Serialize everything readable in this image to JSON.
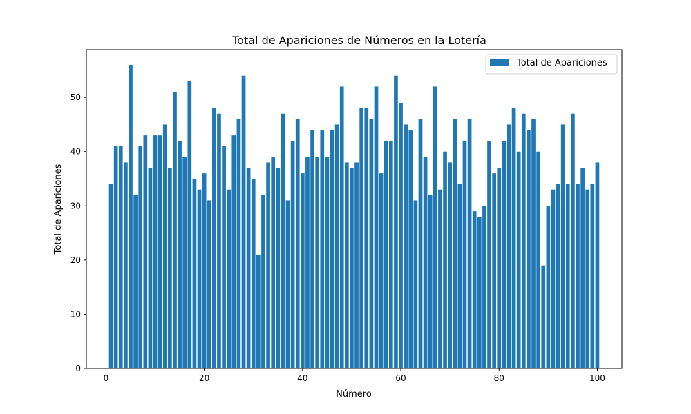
{
  "chart_data": {
    "type": "bar",
    "title": "Total de Apariciones de Números en la Lotería",
    "xlabel": "Número",
    "ylabel": "Total de Apariciones",
    "x": [
      1,
      2,
      3,
      4,
      5,
      6,
      7,
      8,
      9,
      10,
      11,
      12,
      13,
      14,
      15,
      16,
      17,
      18,
      19,
      20,
      21,
      22,
      23,
      24,
      25,
      26,
      27,
      28,
      29,
      30,
      31,
      32,
      33,
      34,
      35,
      36,
      37,
      38,
      39,
      40,
      41,
      42,
      43,
      44,
      45,
      46,
      47,
      48,
      49,
      50,
      51,
      52,
      53,
      54,
      55,
      56,
      57,
      58,
      59,
      60,
      61,
      62,
      63,
      64,
      65,
      66,
      67,
      68,
      69,
      70,
      71,
      72,
      73,
      74,
      75,
      76,
      77,
      78,
      79,
      80,
      81,
      82,
      83,
      84,
      85,
      86,
      87,
      88,
      89,
      90,
      91,
      92,
      93,
      94,
      95,
      96,
      97,
      98,
      99,
      100
    ],
    "series": [
      {
        "name": "Total de Apariciones",
        "color": "#1f77b4",
        "values": [
          34,
          41,
          41,
          38,
          56,
          32,
          41,
          43,
          37,
          43,
          43,
          45,
          37,
          51,
          42,
          39,
          53,
          35,
          33,
          36,
          31,
          48,
          47,
          41,
          33,
          43,
          46,
          54,
          37,
          35,
          21,
          32,
          38,
          39,
          37,
          47,
          31,
          42,
          46,
          36,
          39,
          44,
          39,
          44,
          39,
          44,
          45,
          52,
          38,
          37,
          38,
          48,
          48,
          46,
          52,
          36,
          42,
          42,
          54,
          49,
          45,
          44,
          31,
          46,
          39,
          32,
          52,
          33,
          40,
          38,
          46,
          34,
          42,
          46,
          29,
          28,
          30,
          42,
          36,
          37,
          42,
          45,
          48,
          40,
          47,
          44,
          46,
          40,
          19,
          30,
          33,
          34,
          45,
          34,
          47,
          34,
          37,
          33,
          34,
          38
        ]
      }
    ],
    "xlim": [
      -4,
      105
    ],
    "ylim": [
      0,
      58.8
    ],
    "xticks": [
      0,
      20,
      40,
      60,
      80,
      100
    ],
    "xtick_labels": [
      "0",
      "20",
      "40",
      "60",
      "80",
      "100"
    ],
    "yticks": [
      0,
      10,
      20,
      30,
      40,
      50
    ],
    "ytick_labels": [
      "0",
      "10",
      "20",
      "30",
      "40",
      "50"
    ],
    "grid": false,
    "legend": {
      "position": "top-right",
      "entries": [
        "Total de Apariciones"
      ]
    }
  }
}
